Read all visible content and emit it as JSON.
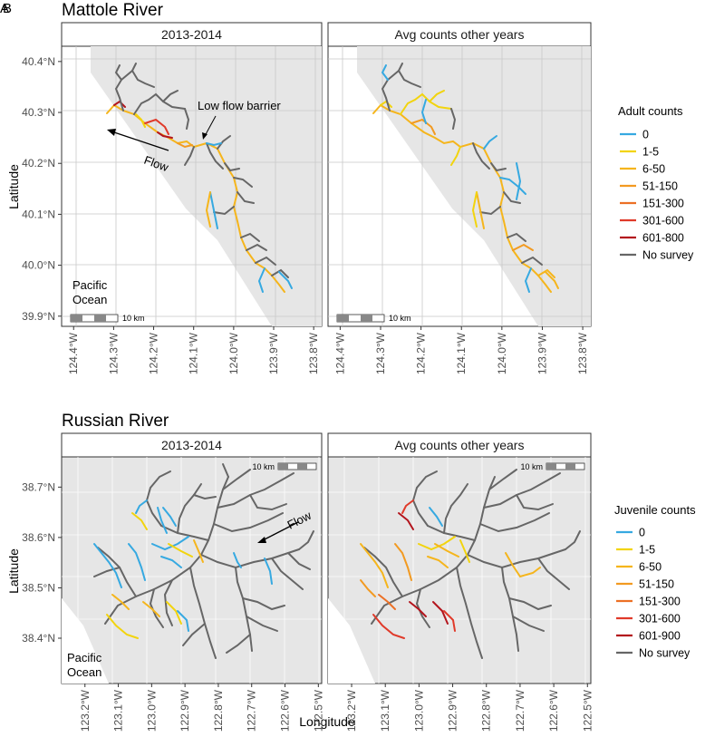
{
  "panel_letter": "A",
  "panel_letter_overlay": "B",
  "chart_data": [
    {
      "type": "map",
      "title": "Mattole River",
      "facets": [
        "2013-2014",
        "Avg counts other years"
      ],
      "xlabel": "",
      "ylabel": "Latitude",
      "x_ticks": [
        "124.4°W",
        "124.3°W",
        "124.2°W",
        "124.1°W",
        "124.0°W",
        "123.9°W",
        "123.8°W"
      ],
      "x_tick_values": [
        -124.4,
        -124.3,
        -124.2,
        -124.1,
        -124.0,
        -123.9,
        -123.8
      ],
      "y_ticks": [
        "40.4°N",
        "40.3°N",
        "40.2°N",
        "40.1°N",
        "40.0°N",
        "39.9°N"
      ],
      "y_tick_values": [
        40.4,
        40.3,
        40.2,
        40.1,
        40.0,
        39.9
      ],
      "xlim": [
        -124.43,
        -123.78
      ],
      "ylim": [
        39.88,
        40.43
      ],
      "legend_title": "Adult counts",
      "legend": [
        {
          "label": "0",
          "color": "#36a9e1"
        },
        {
          "label": "1-5",
          "color": "#f2d40e"
        },
        {
          "label": "6-50",
          "color": "#f5b51c"
        },
        {
          "label": "51-150",
          "color": "#f29a21"
        },
        {
          "label": "151-300",
          "color": "#ec7025"
        },
        {
          "label": "301-600",
          "color": "#e03a2a"
        },
        {
          "label": "601-800",
          "color": "#b3151d"
        },
        {
          "label": "No survey",
          "color": "#666666"
        }
      ],
      "legend_placement": "right",
      "annotations": {
        "barrier": "Low flow barrier",
        "flow": "Flow",
        "ocean": "Pacific Ocean",
        "scale": "10 km"
      }
    },
    {
      "type": "map",
      "title": "Russian River",
      "facets": [
        "2013-2014",
        "Avg counts other years"
      ],
      "xlabel": "Longitude",
      "ylabel": "Latitude",
      "x_ticks": [
        "123.2°W",
        "123.1°W",
        "123.0°W",
        "122.9°W",
        "122.8°W",
        "122.7°W",
        "122.6°W",
        "122.5°W"
      ],
      "x_tick_values": [
        -123.2,
        -123.1,
        -123.0,
        -122.9,
        -122.8,
        -122.7,
        -122.6,
        -122.5
      ],
      "y_ticks": [
        "38.7°N",
        "38.6°N",
        "38.5°N",
        "38.4°N"
      ],
      "y_tick_values": [
        38.7,
        38.6,
        38.5,
        38.4
      ],
      "xlim": [
        -123.27,
        -122.49
      ],
      "ylim": [
        38.31,
        38.76
      ],
      "legend_title": "Juvenile counts",
      "legend": [
        {
          "label": "0",
          "color": "#36a9e1"
        },
        {
          "label": "1-5",
          "color": "#f2d40e"
        },
        {
          "label": "6-50",
          "color": "#f5b51c"
        },
        {
          "label": "51-150",
          "color": "#f29a21"
        },
        {
          "label": "151-300",
          "color": "#ec7025"
        },
        {
          "label": "301-600",
          "color": "#e03a2a"
        },
        {
          "label": "601-900",
          "color": "#b3151d"
        },
        {
          "label": "No survey",
          "color": "#666666"
        }
      ],
      "legend_placement": "right",
      "annotations": {
        "flow": "Flow",
        "ocean": "Pacific Ocean",
        "scale": "10 km"
      }
    }
  ]
}
